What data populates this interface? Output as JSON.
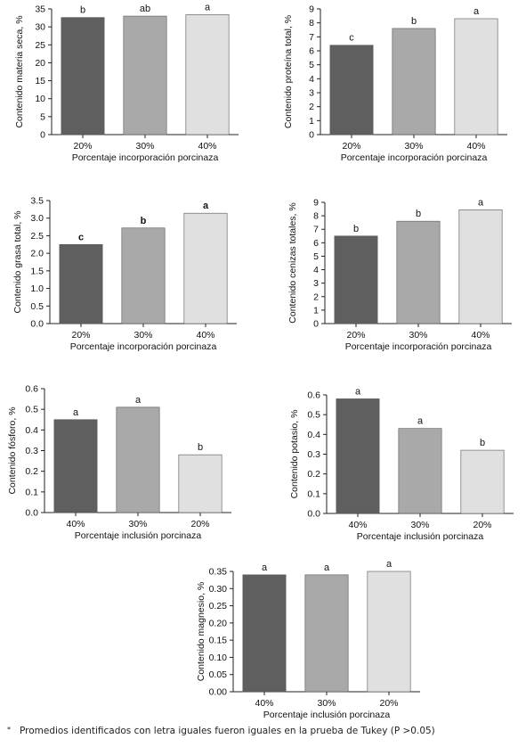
{
  "colors": {
    "bar_dark": "#5f5f5f",
    "bar_mid": "#a9a9a9",
    "bar_light": "#e0e0e0",
    "bar_stroke": "#555555",
    "axis": "#222222"
  },
  "chart_data": [
    {
      "type": "bar",
      "categories": [
        "20%",
        "30%",
        "40%"
      ],
      "values": [
        32.6,
        33.0,
        33.4
      ],
      "letters": [
        "b",
        "ab",
        "a"
      ],
      "letters_bold": false,
      "xlabel": "Porcentaje incorporación porcinaza",
      "ylabel": "Contenido materia seca, %",
      "ylim": [
        0,
        35
      ],
      "yticks": [
        "0",
        "5",
        "10",
        "15",
        "20",
        "25",
        "30",
        "35"
      ],
      "bar_colors": [
        "dark",
        "mid",
        "light"
      ],
      "grid": false
    },
    {
      "type": "bar",
      "categories": [
        "20%",
        "30%",
        "40%"
      ],
      "values": [
        6.4,
        7.6,
        8.3
      ],
      "letters": [
        "c",
        "b",
        "a"
      ],
      "letters_bold": false,
      "xlabel": "Porcentaje incorporación porcinaza",
      "ylabel": "Contenido proteína total, %",
      "ylim": [
        0,
        9
      ],
      "yticks": [
        "0",
        "1",
        "2",
        "3",
        "4",
        "5",
        "6",
        "7",
        "8",
        "9"
      ],
      "bar_colors": [
        "dark",
        "mid",
        "light"
      ],
      "grid": false
    },
    {
      "type": "bar",
      "categories": [
        "20%",
        "30%",
        "40%"
      ],
      "values": [
        2.25,
        2.72,
        3.14
      ],
      "letters": [
        "c",
        "b",
        "a"
      ],
      "letters_bold": true,
      "xlabel": "Porcentaje incorporación porcinaza",
      "ylabel": "Contenido grasa total, %",
      "ylim": [
        0,
        3.5
      ],
      "yticks": [
        "0.0",
        "0.5",
        "1.0",
        "1.5",
        "2.0",
        "2.5",
        "3.0",
        "3.5"
      ],
      "bar_colors": [
        "dark",
        "mid",
        "light"
      ],
      "grid": false
    },
    {
      "type": "bar",
      "categories": [
        "20%",
        "30%",
        "40%"
      ],
      "values": [
        6.5,
        7.6,
        8.45
      ],
      "letters": [
        "b",
        "b",
        "a"
      ],
      "letters_bold": false,
      "xlabel": "Porcentaje incorporación porcinaza",
      "ylabel": "Contenido cenizas totales, %",
      "ylim": [
        0,
        9
      ],
      "yticks": [
        "0",
        "1",
        "2",
        "3",
        "4",
        "5",
        "6",
        "7",
        "8",
        "9"
      ],
      "bar_colors": [
        "dark",
        "mid",
        "light"
      ],
      "grid": false
    },
    {
      "type": "bar",
      "categories": [
        "40%",
        "30%",
        "20%"
      ],
      "values": [
        0.45,
        0.51,
        0.28
      ],
      "letters": [
        "a",
        "a",
        "b"
      ],
      "letters_bold": false,
      "xlabel": "Porcentaje inclusión porcinaza",
      "ylabel": "Contenido fósforo, %",
      "ylim": [
        0,
        0.6
      ],
      "yticks": [
        "0.0",
        "0.1",
        "0.2",
        "0.3",
        "0.4",
        "0.5",
        "0.6"
      ],
      "bar_colors": [
        "dark",
        "mid",
        "light"
      ],
      "grid": false
    },
    {
      "type": "bar",
      "categories": [
        "40%",
        "30%",
        "20%"
      ],
      "values": [
        0.58,
        0.43,
        0.32
      ],
      "letters": [
        "a",
        "a",
        "b"
      ],
      "letters_bold": false,
      "xlabel": "Porcentaje inclusión porcinaza",
      "ylabel": "Contenido potasio, %",
      "ylim": [
        0,
        0.6
      ],
      "yticks": [
        "0.0",
        "0.1",
        "0.2",
        "0.3",
        "0.4",
        "0.5",
        "0.6"
      ],
      "bar_colors": [
        "dark",
        "mid",
        "light"
      ],
      "grid": false
    },
    {
      "type": "bar",
      "categories": [
        "40%",
        "30%",
        "20%"
      ],
      "values": [
        0.34,
        0.34,
        0.35
      ],
      "letters": [
        "a",
        "a",
        "a"
      ],
      "letters_bold": false,
      "xlabel": "Porcentaje inclusión porcinaza",
      "ylabel": "Contenido magnesio, %",
      "ylim": [
        0,
        0.35
      ],
      "yticks": [
        "0.00",
        "0.05",
        "0.10",
        "0.15",
        "0.20",
        "0.25",
        "0.30",
        "0.35"
      ],
      "bar_colors": [
        "dark",
        "mid",
        "light"
      ],
      "grid": false
    }
  ],
  "footnote": {
    "marker": "*",
    "text": "Promedios identificados con letra iguales fueron iguales en la prueba de Tukey (P >0.05)"
  }
}
